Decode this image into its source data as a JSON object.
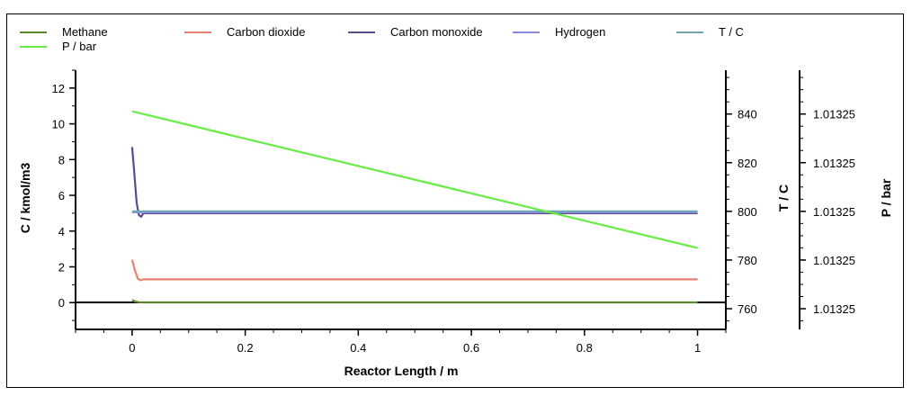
{
  "chart_data": {
    "type": "line",
    "xlabel": "Reactor Length / m",
    "ylabel": "C / kmol/m3",
    "y2label": "T / C",
    "y3label": "P / bar",
    "x_ticks": [
      "0",
      "0.2",
      "0.4",
      "0.6",
      "0.8",
      "1"
    ],
    "x_tick_values": [
      0,
      0.2,
      0.4,
      0.6,
      0.8,
      1
    ],
    "y_ticks": [
      "0",
      "2",
      "4",
      "6",
      "8",
      "10",
      "12"
    ],
    "y_tick_values": [
      0,
      2,
      4,
      6,
      8,
      10,
      12
    ],
    "y2_ticks": [
      "760",
      "780",
      "800",
      "820",
      "840"
    ],
    "y2_tick_values": [
      760,
      780,
      800,
      820,
      840
    ],
    "y3_ticks": [
      "1.01325",
      "1.01325",
      "1.01325",
      "1.01325",
      "1.01325"
    ],
    "xlim": [
      -0.1,
      1.05
    ],
    "ylim": [
      -1.5,
      13
    ],
    "y2lim": [
      751.5,
      858
    ],
    "legend_position": "top",
    "series": [
      {
        "name": "Methane",
        "color": "#5a8a2e",
        "axis": "left",
        "x": [
          0,
          0.005,
          0.012,
          0.02,
          1
        ],
        "y": [
          0.15,
          0.06,
          0.02,
          0.01,
          0.01
        ]
      },
      {
        "name": "Carbon dioxide",
        "color": "#e8826e",
        "axis": "left",
        "x": [
          0,
          0.005,
          0.01,
          0.015,
          0.02,
          1
        ],
        "y": [
          2.4,
          1.8,
          1.35,
          1.25,
          1.3,
          1.3
        ]
      },
      {
        "name": "Carbon monoxide",
        "color": "#5c4a8c",
        "axis": "left",
        "x": [
          0,
          0.004,
          0.008,
          0.012,
          0.016,
          0.02,
          1
        ],
        "y": [
          8.7,
          7.2,
          5.6,
          4.9,
          4.8,
          5.0,
          5.0
        ]
      },
      {
        "name": "Hydrogen",
        "color": "#8a8ae6",
        "axis": "left",
        "x": [
          0,
          1
        ],
        "y": [
          5.05,
          5.05
        ]
      },
      {
        "name": "T / C",
        "color": "#6fa7b0",
        "axis": "right",
        "x": [
          0,
          1
        ],
        "y": [
          800,
          800
        ]
      },
      {
        "name": "P / bar",
        "color": "#66ee44",
        "axis": "left",
        "x": [
          0,
          1
        ],
        "y": [
          10.7,
          3.05
        ]
      }
    ]
  }
}
